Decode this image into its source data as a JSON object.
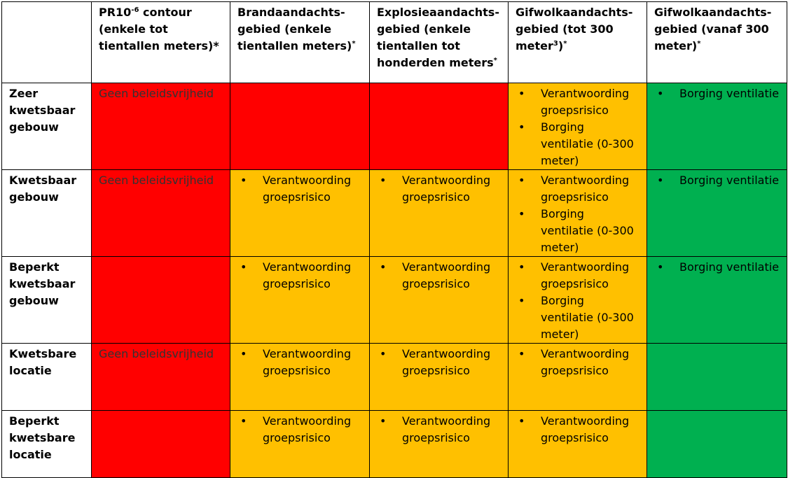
{
  "headers": {
    "pr10": {
      "pre": "PR10",
      "sup": "-6",
      "post": " contour (enkele tot tientallen meters)*"
    },
    "brand": {
      "text": "Brandaandachts-gebied (enkele tientallen meters)",
      "sup": "*"
    },
    "explosie": {
      "text": "Explosieaandachts-gebied (enkele tientallen tot honderden meters",
      "sup": "*"
    },
    "gif300": {
      "pre": "Gifwolkaandachts-gebied (tot 300 meter",
      "sup1": "3",
      "mid": ")",
      "sup2": "*"
    },
    "gifvanaf": {
      "text": "Gifwolkaandachts-gebied  (vanaf  300 meter)",
      "sup": "*"
    }
  },
  "rows": [
    {
      "label": "Zeer kwetsbaar gebouw",
      "c1": "Geen beleidsvrijheid",
      "c4": [
        "Verantwoording groepsrisico",
        "Borging ventilatie (0-300 meter)"
      ],
      "c5": [
        "Borging ventilatie"
      ]
    },
    {
      "label": "Kwetsbaar gebouw",
      "c1": "Geen beleidsvrijheid",
      "c2": [
        "Verantwoording groepsrisico"
      ],
      "c3": [
        "Verantwoording groepsrisico"
      ],
      "c4": [
        "Verantwoording groepsrisico",
        "Borging ventilatie (0-300 meter)"
      ],
      "c5": [
        "Borging ventilatie"
      ]
    },
    {
      "label": "Beperkt kwetsbaar gebouw",
      "c2": [
        "Verantwoording groepsrisico"
      ],
      "c3": [
        "Verantwoording groepsrisico"
      ],
      "c4": [
        "Verantwoording groepsrisico",
        "Borging ventilatie (0-300 meter)"
      ],
      "c5": [
        "Borging ventilatie"
      ]
    },
    {
      "label": "Kwetsbare locatie",
      "c1": "Geen beleidsvrijheid",
      "c2": [
        "Verantwoording groepsrisico"
      ],
      "c3": [
        "Verantwoording groepsrisico"
      ],
      "c4": [
        "Verantwoording groepsrisico"
      ]
    },
    {
      "label": "Beperkt kwetsbare locatie",
      "c2": [
        "Verantwoording groepsrisico"
      ],
      "c3": [
        "Verantwoording groepsrisico"
      ],
      "c4": [
        "Verantwoording groepsrisico"
      ]
    }
  ],
  "bullet": "•",
  "colors": {
    "red": "#ff0000",
    "amber": "#ffc000",
    "green": "#00b050"
  }
}
